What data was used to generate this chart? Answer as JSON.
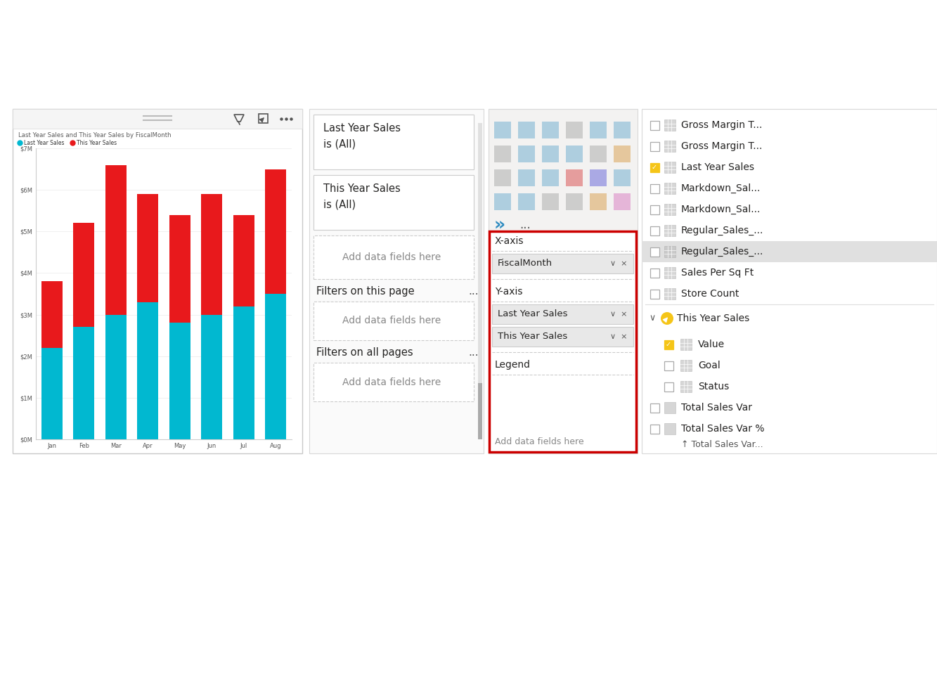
{
  "bg_color": "#ffffff",
  "panel_bg": "#f3f2f1",
  "chart_bg": "#ffffff",
  "chart_title": "Last Year Sales and This Year Sales by FiscalMonth",
  "chart_title_color": "#595959",
  "legend_last_year": "Last Year Sales",
  "legend_this_year": "This Year Sales",
  "last_year_color": "#01b8d0",
  "this_year_color": "#e8191c",
  "months": [
    "Jan",
    "Feb",
    "Mar",
    "Apr",
    "May",
    "Jun",
    "Jul",
    "Aug"
  ],
  "last_year_values": [
    2.2,
    2.7,
    3.0,
    3.3,
    2.8,
    3.0,
    3.2,
    3.5
  ],
  "this_year_values": [
    1.6,
    2.5,
    3.6,
    2.6,
    2.6,
    2.9,
    2.2,
    3.0
  ],
  "filter_box1_title": "Last Year Sales",
  "filter_box1_sub": "is (All)",
  "filter_box2_title": "This Year Sales",
  "filter_box2_sub": "is (All)",
  "filter_page_text": "Filters on this page",
  "filter_all_text": "Filters on all pages",
  "add_fields_text": "Add data fields here",
  "xaxis_label": "X-axis",
  "xaxis_field": "FiscalMonth",
  "yaxis_label": "Y-axis",
  "yaxis_field1": "Last Year Sales",
  "yaxis_field2": "This Year Sales",
  "legend_label": "Legend",
  "add_legend_text": "Add data fields here",
  "right_panel_items": [
    {
      "text": "Gross Margin T...",
      "checked": false,
      "highlighted_row": false
    },
    {
      "text": "Gross Margin T...",
      "checked": false,
      "highlighted_row": false
    },
    {
      "text": "Last Year Sales",
      "checked": true,
      "highlighted_row": false
    },
    {
      "text": "Markdown_Sal...",
      "checked": false,
      "highlighted_row": false
    },
    {
      "text": "Markdown_Sal...",
      "checked": false,
      "highlighted_row": false
    },
    {
      "text": "Regular_Sales_...",
      "checked": false,
      "highlighted_row": false
    },
    {
      "text": "Regular_Sales_...",
      "checked": false,
      "highlighted_row": true
    },
    {
      "text": "Sales Per Sq Ft",
      "checked": false,
      "highlighted_row": false
    },
    {
      "text": "Store Count",
      "checked": false,
      "highlighted_row": false
    }
  ],
  "this_year_sales_group": {
    "label": "This Year Sales",
    "items": [
      {
        "name": "Value",
        "checked": true
      },
      {
        "name": "Goal",
        "checked": false
      },
      {
        "name": "Status",
        "checked": false
      }
    ]
  },
  "extra_items": [
    {
      "text": "Total Sales Var",
      "checked": false
    },
    {
      "text": "Total Sales Var %",
      "checked": false
    }
  ]
}
